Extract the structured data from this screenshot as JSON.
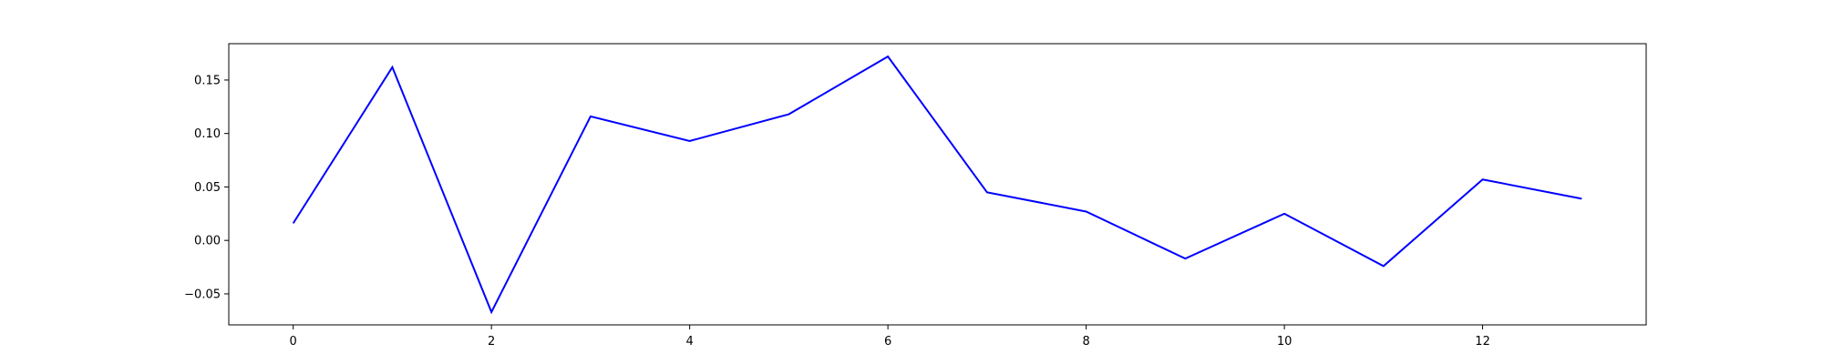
{
  "chart_data": {
    "type": "line",
    "title": "",
    "xlabel": "",
    "ylabel": "",
    "grid": false,
    "legend": "none",
    "xlim": [
      -0.65,
      13.65
    ],
    "ylim": [
      -0.079,
      0.184
    ],
    "xticks": [
      0,
      2,
      4,
      6,
      8,
      10,
      12
    ],
    "yticks": [
      -0.05,
      0.0,
      0.05,
      0.1,
      0.15
    ],
    "ytick_labels": [
      "−0.05",
      "0.00",
      "0.05",
      "0.10",
      "0.15"
    ],
    "series": [
      {
        "color": "#0000ff",
        "x": [
          0,
          1,
          2,
          3,
          4,
          5,
          6,
          7,
          8,
          9,
          10,
          11,
          12,
          13
        ],
        "y": [
          0.016,
          0.162,
          -0.067,
          0.116,
          0.093,
          0.118,
          0.172,
          0.045,
          0.027,
          -0.017,
          0.025,
          -0.024,
          0.057,
          0.039
        ]
      }
    ]
  }
}
